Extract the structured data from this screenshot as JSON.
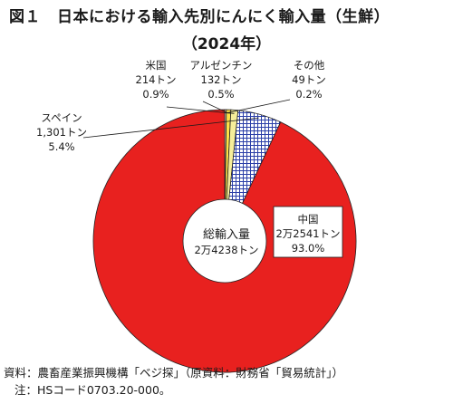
{
  "title": {
    "figure_label": "図１",
    "text": "日本における輸入先別にんにく輸入量（生鮮）",
    "year": "（2024年）"
  },
  "chart_data": {
    "type": "pie",
    "style": "donut",
    "center_label": {
      "line1": "総輸入量",
      "line2": "2万4238トン"
    },
    "total": 24238,
    "unit": "トン",
    "slices": [
      {
        "name": "中国",
        "amount_label": "2万2541トン",
        "percent_label": "93.0%",
        "value": 22541,
        "percent": 93.0,
        "color": "#e8211f",
        "pattern": "solid"
      },
      {
        "name": "スペイン",
        "amount_label": "1,301トン",
        "percent_label": "5.4%",
        "value": 1301,
        "percent": 5.4,
        "color": "#2b3fa8",
        "pattern": "grid"
      },
      {
        "name": "米国",
        "amount_label": "214トン",
        "percent_label": "0.9%",
        "value": 214,
        "percent": 0.9,
        "color": "#f6ee9a",
        "pattern": "solid"
      },
      {
        "name": "アルゼンチン",
        "amount_label": "132トン",
        "percent_label": "0.5%",
        "value": 132,
        "percent": 0.5,
        "color": "#fde047",
        "pattern": "solid"
      },
      {
        "name": "その他",
        "amount_label": "49トン",
        "percent_label": "0.2%",
        "value": 49,
        "percent": 0.2,
        "color": "#fff7cc",
        "pattern": "solid"
      }
    ]
  },
  "notes": {
    "source": "資料：農畜産業振興機構「ベジ探」（原資料：財務省「貿易統計」）",
    "note": "注：HSコード0703.20-000。"
  }
}
